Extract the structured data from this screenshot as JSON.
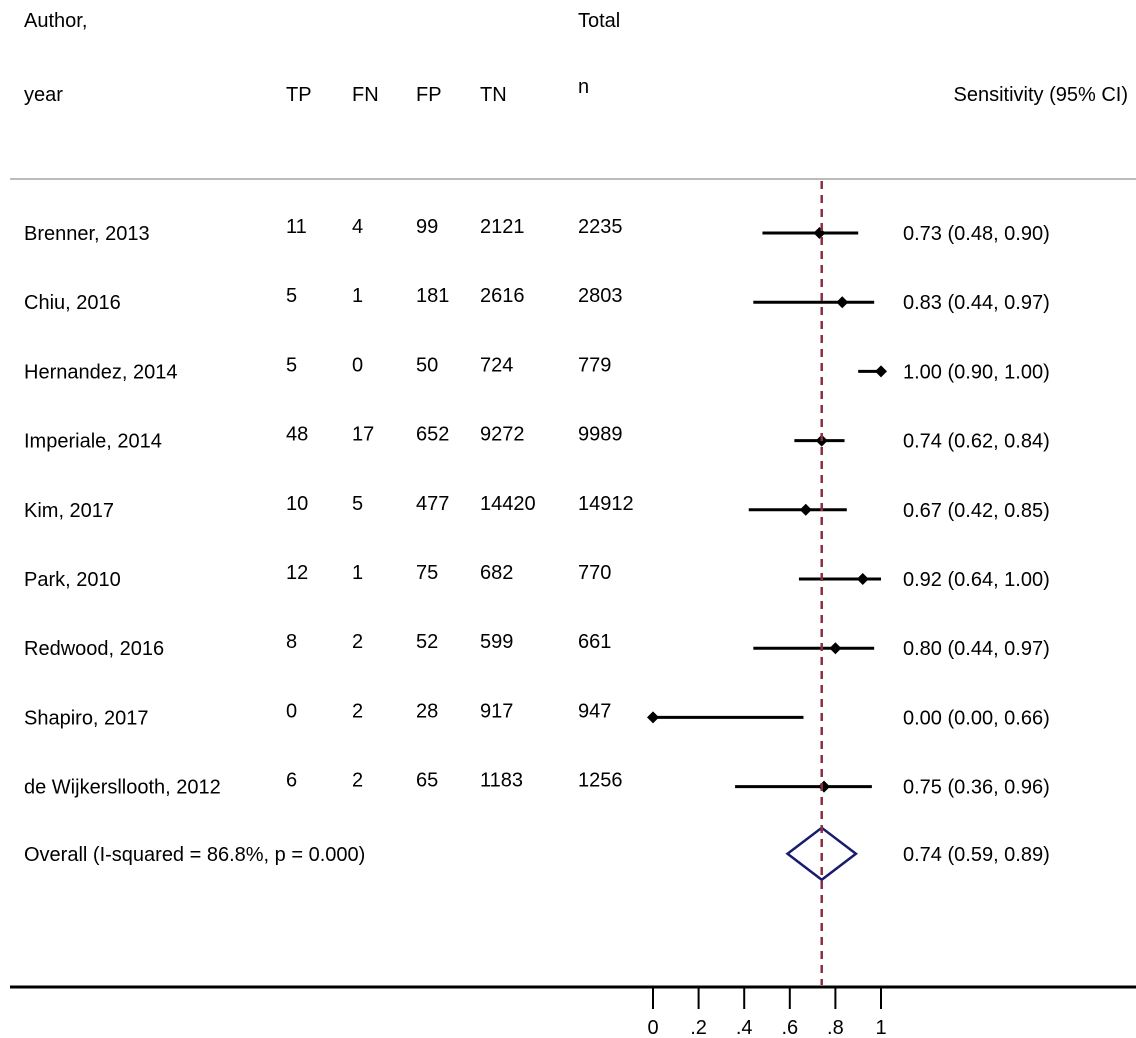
{
  "chart_data": {
    "type": "forest",
    "header": {
      "author_line1": "Author,",
      "author_line2": "year",
      "tp": "TP",
      "fn": "FN",
      "fp": "FP",
      "tn": "TN",
      "total_line1": "Total",
      "total_line2": "n",
      "estimate": "Sensitivity (95% CI)"
    },
    "studies": [
      {
        "label": "Brenner, 2013",
        "tp": "11",
        "fn": "4",
        "fp": "99",
        "tn": "2121",
        "n": "2235",
        "est": 0.73,
        "lo": 0.48,
        "hi": 0.9,
        "text": "0.73 (0.48, 0.90)"
      },
      {
        "label": "Chiu, 2016",
        "tp": "5",
        "fn": "1",
        "fp": "181",
        "tn": "2616",
        "n": "2803",
        "est": 0.83,
        "lo": 0.44,
        "hi": 0.97,
        "text": "0.83 (0.44, 0.97)"
      },
      {
        "label": "Hernandez, 2014",
        "tp": "5",
        "fn": "0",
        "fp": "50",
        "tn": "724",
        "n": "779",
        "est": 1.0,
        "lo": 0.9,
        "hi": 1.0,
        "text": "1.00 (0.90, 1.00)"
      },
      {
        "label": "Imperiale, 2014",
        "tp": "48",
        "fn": "17",
        "fp": "652",
        "tn": "9272",
        "n": "9989",
        "est": 0.74,
        "lo": 0.62,
        "hi": 0.84,
        "text": "0.74 (0.62, 0.84)"
      },
      {
        "label": "Kim, 2017",
        "tp": "10",
        "fn": "5",
        "fp": "477",
        "tn": "14420",
        "n": "14912",
        "est": 0.67,
        "lo": 0.42,
        "hi": 0.85,
        "text": "0.67 (0.42, 0.85)"
      },
      {
        "label": "Park, 2010",
        "tp": "12",
        "fn": "1",
        "fp": "75",
        "tn": "682",
        "n": "770",
        "est": 0.92,
        "lo": 0.64,
        "hi": 1.0,
        "text": "0.92 (0.64, 1.00)"
      },
      {
        "label": "Redwood, 2016",
        "tp": "8",
        "fn": "2",
        "fp": "52",
        "tn": "599",
        "n": "661",
        "est": 0.8,
        "lo": 0.44,
        "hi": 0.97,
        "text": "0.80 (0.44, 0.97)"
      },
      {
        "label": "Shapiro, 2017",
        "tp": "0",
        "fn": "2",
        "fp": "28",
        "tn": "917",
        "n": "947",
        "est": 0.0,
        "lo": 0.0,
        "hi": 0.66,
        "text": "0.00 (0.00, 0.66)"
      },
      {
        "label": "de Wijkersllooth, 2012",
        "tp": "6",
        "fn": "2",
        "fp": "65",
        "tn": "1183",
        "n": "1256",
        "est": 0.75,
        "lo": 0.36,
        "hi": 0.96,
        "text": "0.75 (0.36, 0.96)"
      }
    ],
    "overall": {
      "label": "Overall  (I-squared = 86.8%, p = 0.000)",
      "est": 0.74,
      "lo": 0.59,
      "hi": 0.89,
      "text": "0.74 (0.59, 0.89)"
    },
    "xaxis": {
      "range": [
        0,
        1
      ],
      "ticks": [
        0,
        0.2,
        0.4,
        0.6,
        0.8,
        1
      ],
      "tick_labels": [
        "0",
        ".2",
        ".4",
        ".6",
        ".8",
        "1"
      ]
    },
    "reference_line": 0.74,
    "colors": {
      "marker": "#000000",
      "reference_line": "#8b2f3f",
      "diamond": "#1a1a6e",
      "header_rule": "#bbbbbb"
    }
  }
}
